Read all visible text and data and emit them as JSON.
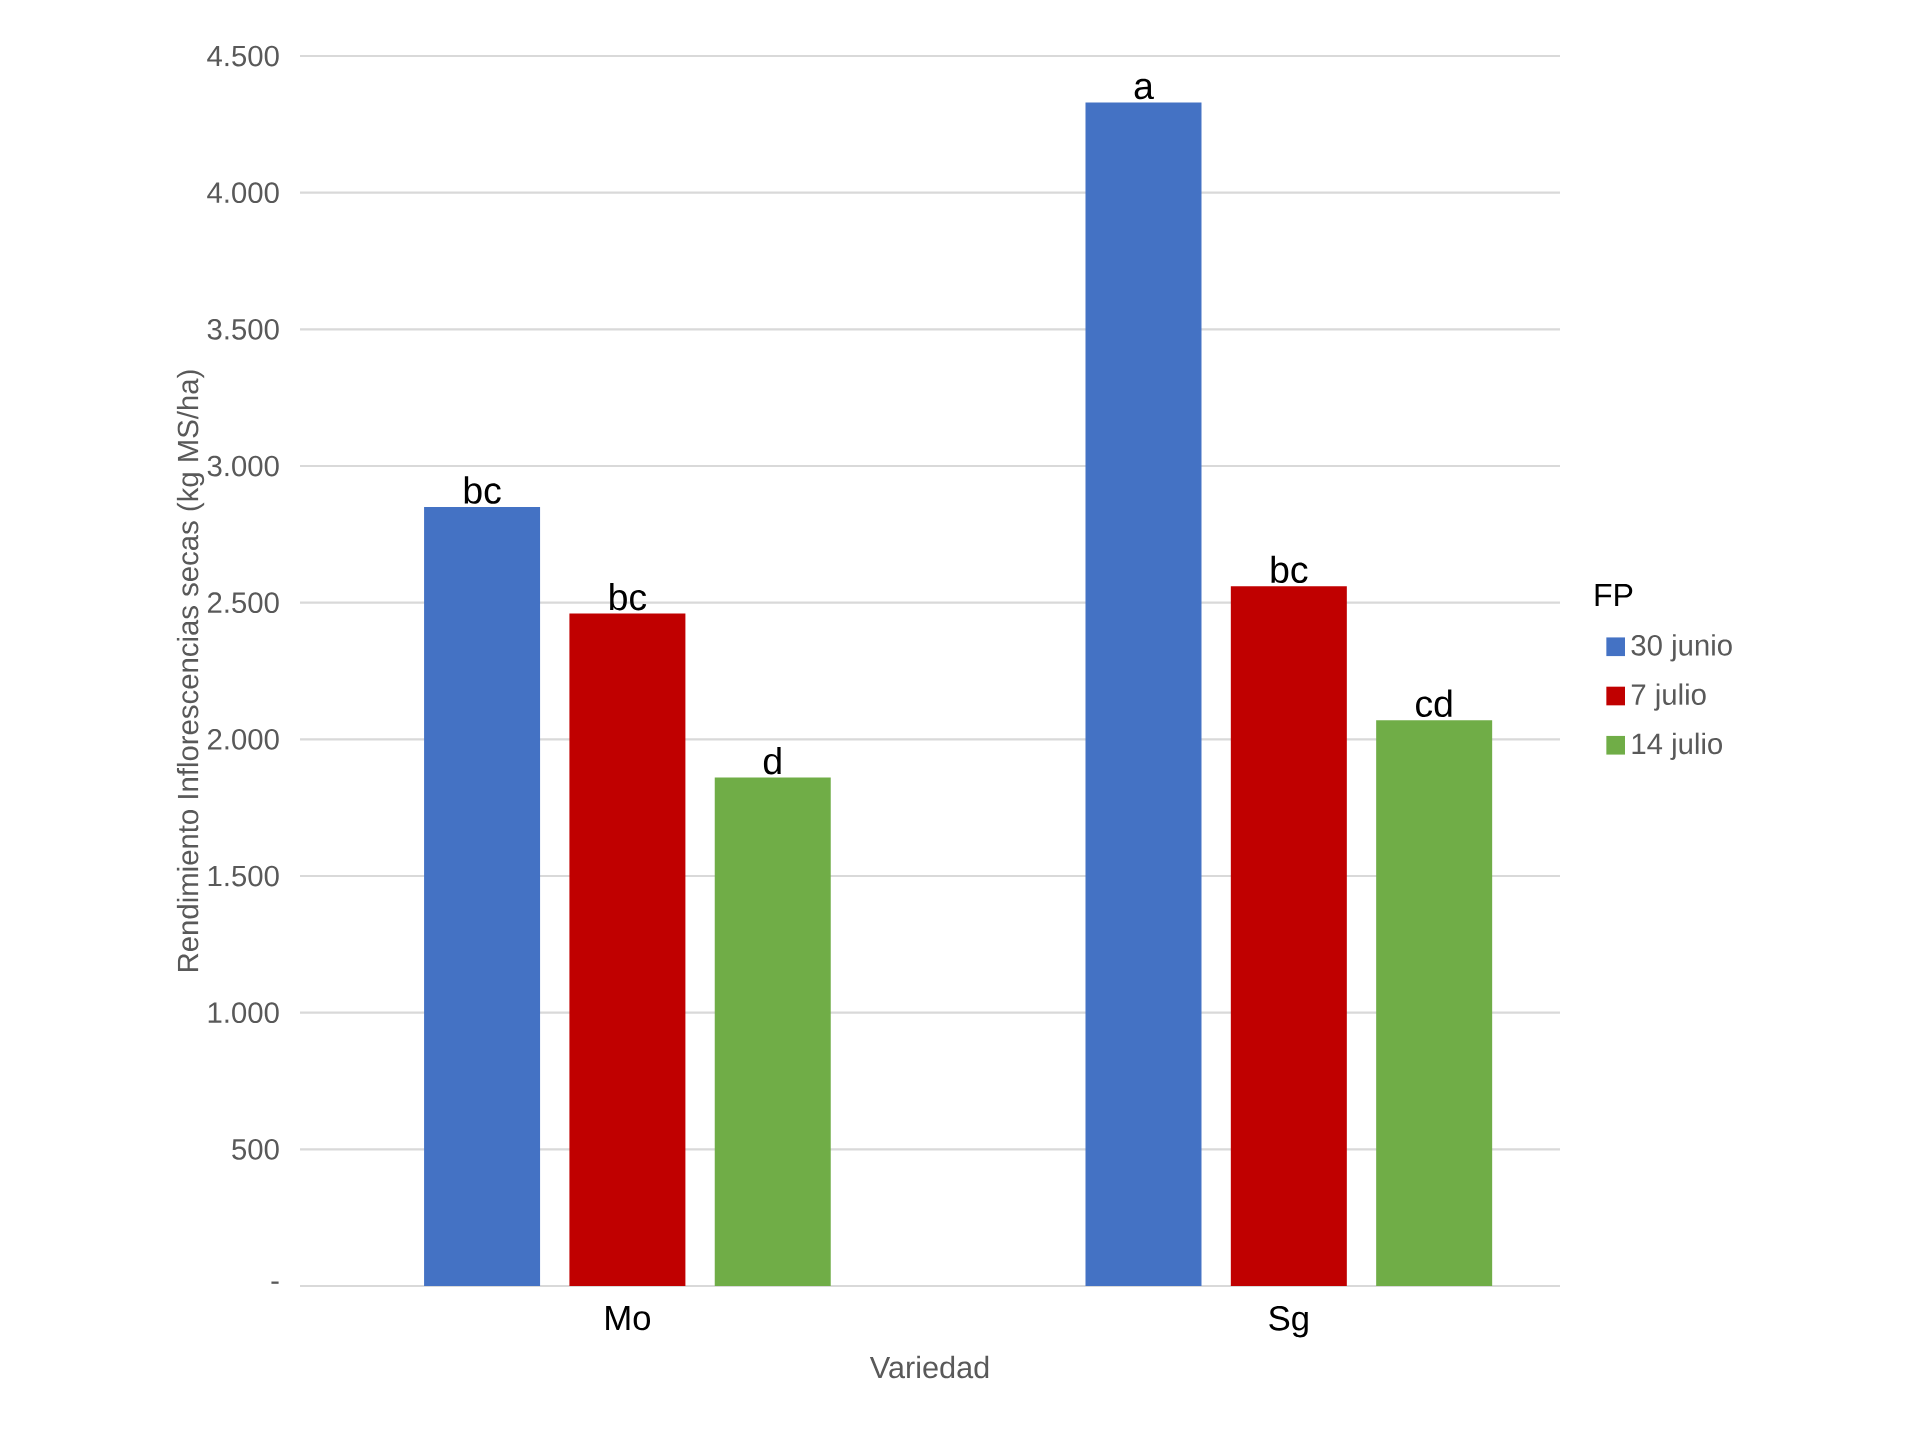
{
  "chart_data": {
    "type": "bar",
    "xlabel": "Variedad",
    "ylabel": "Rendimiento Inflorescencias secas (kg MS/ha)",
    "legend_title": "FP",
    "categories": [
      "Mo",
      "Sg"
    ],
    "series": [
      {
        "name": "30 junio",
        "color": "#4472c4",
        "values": [
          2850,
          4330
        ],
        "value_labels": [
          "bc",
          "a"
        ]
      },
      {
        "name": "7 julio",
        "color": "#c00000",
        "values": [
          2460,
          2560
        ],
        "value_labels": [
          "bc",
          "bc"
        ]
      },
      {
        "name": "14 julio",
        "color": "#70ad47",
        "values": [
          1860,
          2070
        ],
        "value_labels": [
          "d",
          "cd"
        ]
      }
    ],
    "ylim": [
      0,
      4500
    ],
    "yticks": [
      {
        "value": 0,
        "label": "-"
      },
      {
        "value": 500,
        "label": "500"
      },
      {
        "value": 1000,
        "label": "1.000"
      },
      {
        "value": 1500,
        "label": "1.500"
      },
      {
        "value": 2000,
        "label": "2.000"
      },
      {
        "value": 2500,
        "label": "2.500"
      },
      {
        "value": 3000,
        "label": "3.000"
      },
      {
        "value": 3500,
        "label": "3.500"
      },
      {
        "value": 4000,
        "label": "4.000"
      },
      {
        "value": 4500,
        "label": "4.500"
      }
    ],
    "grid": "y",
    "legend": "right"
  }
}
